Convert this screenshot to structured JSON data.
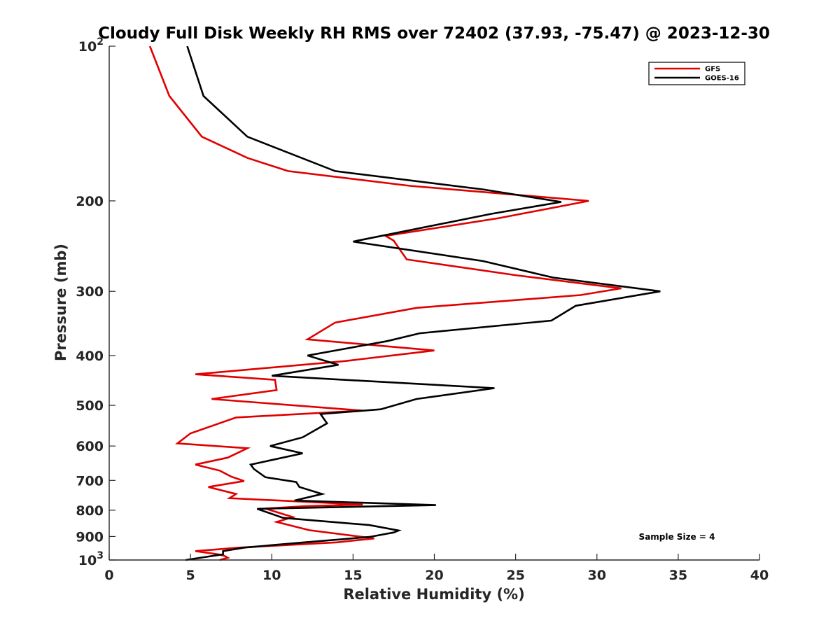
{
  "chart_data": {
    "type": "line",
    "title": "Cloudy Full Disk Weekly RH RMS over 72402 (37.93, -75.47) @ 2023-12-30",
    "xlabel": "Relative Humidity (%)",
    "ylabel": "Pressure (mb)",
    "xlim": [
      0,
      40
    ],
    "ylim": [
      100,
      1000
    ],
    "y_scale": "log",
    "y_reversed": true,
    "grid": false,
    "legend_position": "top-right",
    "x_ticks": [
      0,
      5,
      10,
      15,
      20,
      25,
      30,
      35,
      40
    ],
    "x_tick_labels": [
      "0",
      "5",
      "10",
      "15",
      "20",
      "25",
      "30",
      "35",
      "40"
    ],
    "y_ticks": [
      100,
      200,
      300,
      400,
      500,
      600,
      700,
      800,
      900,
      1000
    ],
    "y_tick_labels": [
      "10^2",
      "200",
      "300",
      "400",
      "500",
      "600",
      "700",
      "800",
      "900",
      "10^3"
    ],
    "annotation": "Sample Size = 4",
    "series": [
      {
        "name": "GFS",
        "color": "#e00000",
        "points": [
          [
            2.5,
            100
          ],
          [
            3.7,
            125
          ],
          [
            5.7,
            150
          ],
          [
            8.5,
            165
          ],
          [
            11.0,
            175
          ],
          [
            18.5,
            187
          ],
          [
            29.5,
            200
          ],
          [
            24.0,
            216
          ],
          [
            17.0,
            234
          ],
          [
            17.5,
            239
          ],
          [
            18.3,
            260
          ],
          [
            25.0,
            279
          ],
          [
            31.5,
            296
          ],
          [
            29.0,
            305
          ],
          [
            18.9,
            323
          ],
          [
            13.9,
            345
          ],
          [
            12.2,
            372
          ],
          [
            20.0,
            391
          ],
          [
            14.5,
            410
          ],
          [
            5.3,
            435
          ],
          [
            10.2,
            446
          ],
          [
            10.3,
            467
          ],
          [
            6.3,
            486
          ],
          [
            15.6,
            512
          ],
          [
            7.8,
            528
          ],
          [
            5.0,
            567
          ],
          [
            4.2,
            593
          ],
          [
            8.5,
            606
          ],
          [
            7.3,
            632
          ],
          [
            5.3,
            652
          ],
          [
            6.8,
            670
          ],
          [
            7.5,
            688
          ],
          [
            8.3,
            702
          ],
          [
            6.1,
            721
          ],
          [
            7.8,
            744
          ],
          [
            7.4,
            758
          ],
          [
            15.6,
            780
          ],
          [
            12.0,
            786
          ],
          [
            9.6,
            794
          ],
          [
            11.3,
            825
          ],
          [
            10.3,
            843
          ],
          [
            12.3,
            875
          ],
          [
            16.3,
            908
          ],
          [
            14.0,
            924
          ],
          [
            8.0,
            946
          ],
          [
            5.3,
            961
          ],
          [
            6.7,
            975
          ],
          [
            7.1,
            982
          ],
          [
            7.3,
            990
          ],
          [
            6.8,
            1000
          ]
        ]
      },
      {
        "name": "GOES-16",
        "color": "#000000",
        "points": [
          [
            4.8,
            100
          ],
          [
            5.8,
            125
          ],
          [
            8.5,
            150
          ],
          [
            13.9,
            175
          ],
          [
            23.0,
            190
          ],
          [
            27.8,
            201
          ],
          [
            23.5,
            212
          ],
          [
            15.0,
            240
          ],
          [
            23.0,
            262
          ],
          [
            27.3,
            282
          ],
          [
            33.9,
            300
          ],
          [
            28.7,
            320
          ],
          [
            27.2,
            342
          ],
          [
            19.1,
            362
          ],
          [
            17.1,
            375
          ],
          [
            12.2,
            400
          ],
          [
            14.1,
            417
          ],
          [
            10.0,
            438
          ],
          [
            23.7,
            463
          ],
          [
            18.9,
            486
          ],
          [
            16.7,
            509
          ],
          [
            13.0,
            520
          ],
          [
            13.4,
            542
          ],
          [
            11.9,
            577
          ],
          [
            9.9,
            600
          ],
          [
            11.9,
            620
          ],
          [
            8.7,
            652
          ],
          [
            8.9,
            665
          ],
          [
            9.6,
            690
          ],
          [
            11.5,
            705
          ],
          [
            11.7,
            721
          ],
          [
            13.1,
            744
          ],
          [
            11.4,
            766
          ],
          [
            20.1,
            782
          ],
          [
            9.1,
            795
          ],
          [
            10.7,
            828
          ],
          [
            16.0,
            855
          ],
          [
            17.8,
            876
          ],
          [
            17.5,
            884
          ],
          [
            16.0,
            902
          ],
          [
            12.0,
            924
          ],
          [
            8.3,
            946
          ],
          [
            7.0,
            961
          ],
          [
            7.0,
            975
          ],
          [
            4.7,
            1000
          ]
        ]
      }
    ]
  }
}
